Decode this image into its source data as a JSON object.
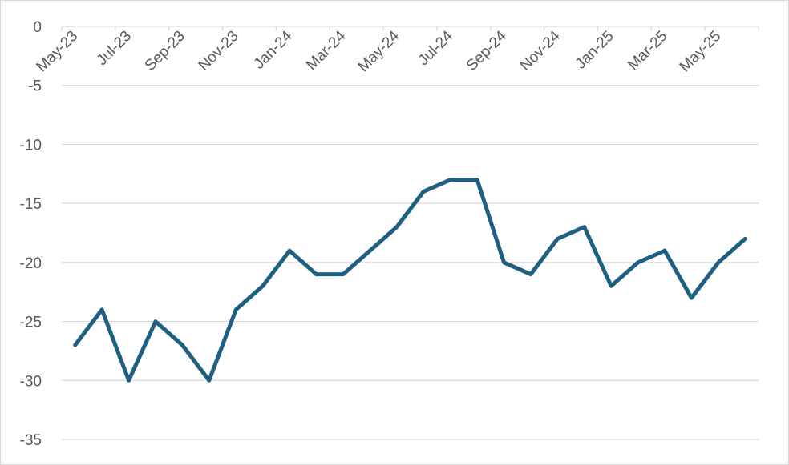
{
  "chart_data": {
    "type": "line",
    "title": "",
    "xlabel": "",
    "ylabel": "",
    "ylim": [
      -35,
      0
    ],
    "yticks": [
      0,
      -5,
      -10,
      -15,
      -20,
      -25,
      -30,
      -35
    ],
    "x_tick_labels": [
      "May-23",
      "Jul-23",
      "Sep-23",
      "Nov-23",
      "Jan-24",
      "Mar-24",
      "May-24",
      "Jul-24",
      "Sep-24",
      "Nov-24",
      "Jan-25",
      "Mar-25",
      "May-25"
    ],
    "x": [
      "May-23",
      "Jun-23",
      "Jul-23",
      "Aug-23",
      "Sep-23",
      "Oct-23",
      "Nov-23",
      "Dec-23",
      "Jan-24",
      "Feb-24",
      "Mar-24",
      "Apr-24",
      "May-24",
      "Jun-24",
      "Jul-24",
      "Aug-24",
      "Sep-24",
      "Oct-24",
      "Nov-24",
      "Dec-24",
      "Jan-25",
      "Feb-25",
      "Mar-25",
      "Apr-25",
      "May-25",
      "Jun-25"
    ],
    "series": [
      {
        "values": [
          -27,
          -24,
          -30,
          -25,
          -27,
          -30,
          -24,
          -22,
          -19,
          -21,
          -21,
          -19,
          -17,
          -14,
          -13,
          -13,
          -20,
          -21,
          -18,
          -17,
          -22,
          -20,
          -19,
          -23,
          -20,
          -18
        ],
        "color": "#1f5f82"
      }
    ],
    "grid": "horizontal",
    "x_axis_position": "top"
  }
}
